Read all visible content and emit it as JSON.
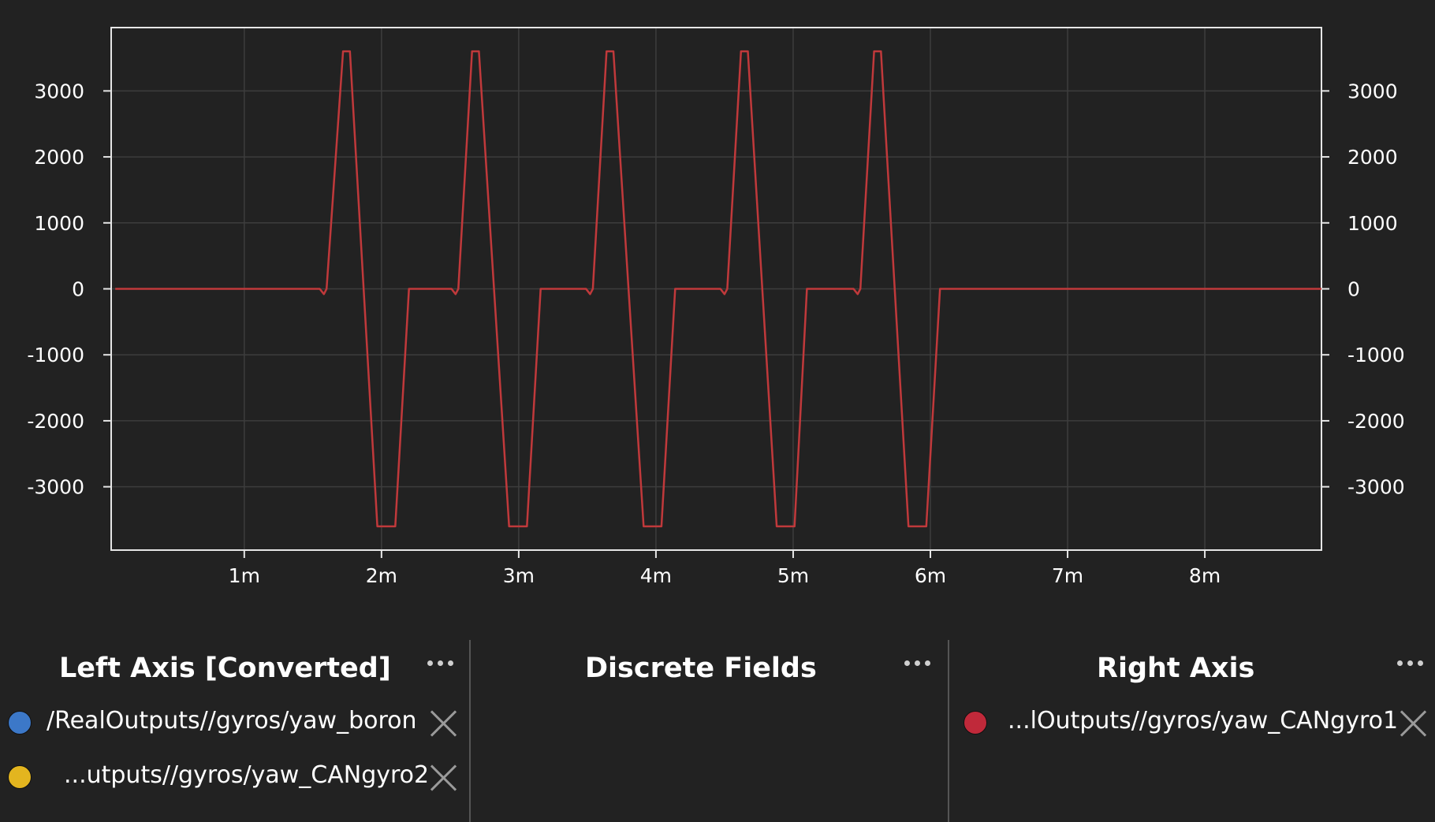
{
  "chart_data": {
    "type": "line",
    "x_unit": "minutes",
    "xlim": [
      0.03,
      8.85
    ],
    "ylim": [
      -3960,
      3960
    ],
    "x_ticks": [
      1,
      2,
      3,
      4,
      5,
      6,
      7,
      8
    ],
    "x_tick_labels": [
      "1m",
      "2m",
      "3m",
      "4m",
      "5m",
      "6m",
      "7m",
      "8m"
    ],
    "y_ticks": [
      3000,
      2000,
      1000,
      0,
      -1000,
      -2000,
      -3000
    ],
    "y_tick_labels": [
      "3000",
      "2000",
      "1000",
      "0",
      "-1000",
      "-2000",
      "-3000"
    ],
    "right_y_tick_labels": [
      "3000",
      "2000",
      "1000",
      "0",
      "-1000",
      "-2000",
      "-3000"
    ],
    "grid": true,
    "series": [
      {
        "name": "/RealOutputs//gyros/yaw_CANgyro1",
        "axis": "right",
        "color": "#c0393b",
        "x": [
          0.06,
          1.55,
          1.58,
          1.6,
          1.72,
          1.77,
          1.97,
          2.0,
          2.1,
          2.2,
          2.51,
          2.54,
          2.56,
          2.66,
          2.71,
          2.93,
          2.96,
          3.06,
          3.16,
          3.49,
          3.52,
          3.54,
          3.64,
          3.69,
          3.91,
          3.94,
          4.04,
          4.14,
          4.47,
          4.5,
          4.52,
          4.62,
          4.67,
          4.88,
          4.91,
          5.01,
          5.1,
          5.44,
          5.47,
          5.49,
          5.59,
          5.64,
          5.84,
          5.87,
          5.97,
          6.07,
          8.85
        ],
        "y": [
          0,
          0,
          -80,
          0,
          3600,
          3600,
          -3600,
          -3600,
          -3600,
          0,
          0,
          -80,
          0,
          3600,
          3600,
          -3600,
          -3600,
          -3600,
          0,
          0,
          -80,
          0,
          3600,
          3600,
          -3600,
          -3600,
          -3600,
          0,
          0,
          -80,
          0,
          3600,
          3600,
          -3600,
          -3600,
          -3600,
          0,
          0,
          -80,
          0,
          3600,
          3600,
          -3600,
          -3600,
          -3600,
          0,
          0
        ]
      }
    ]
  },
  "panels": {
    "left": {
      "title": "Left Axis [Converted]",
      "fields": [
        {
          "name": "/RealOutputs//gyros/yaw_boron",
          "color": "#3c78c8"
        },
        {
          "name": "...utputs//gyros/yaw_CANgyro2",
          "color": "#e3b51f"
        }
      ]
    },
    "discrete": {
      "title": "Discrete Fields",
      "fields": []
    },
    "right": {
      "title": "Right Axis",
      "fields": [
        {
          "name": "...lOutputs//gyros/yaw_CANgyro1",
          "color": "#c0293a"
        }
      ]
    }
  }
}
